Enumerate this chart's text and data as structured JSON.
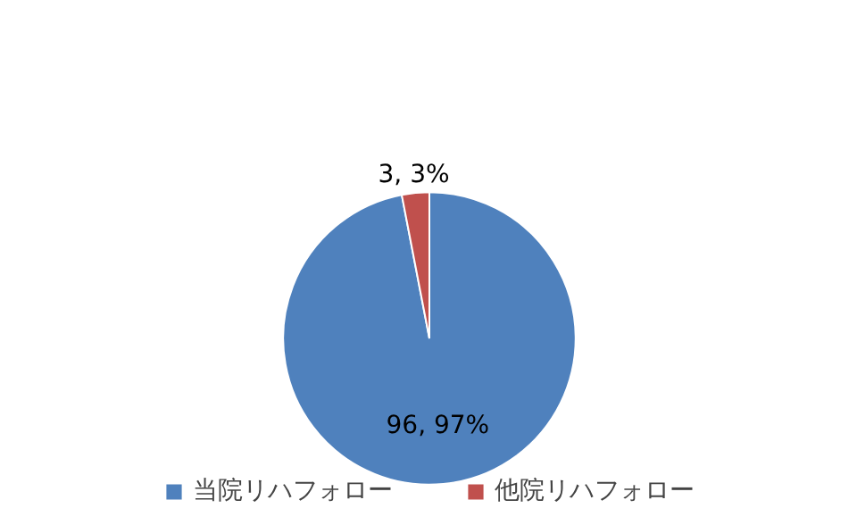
{
  "chart_data": {
    "type": "pie",
    "categories": [
      "当院リハフォロー",
      "他院リハフォロー"
    ],
    "values": [
      96,
      3
    ],
    "colors": [
      "#4f81bd",
      "#c0504d"
    ],
    "value_labels": [
      "96, 97%",
      "3, 3%"
    ],
    "legend": "bottom"
  }
}
